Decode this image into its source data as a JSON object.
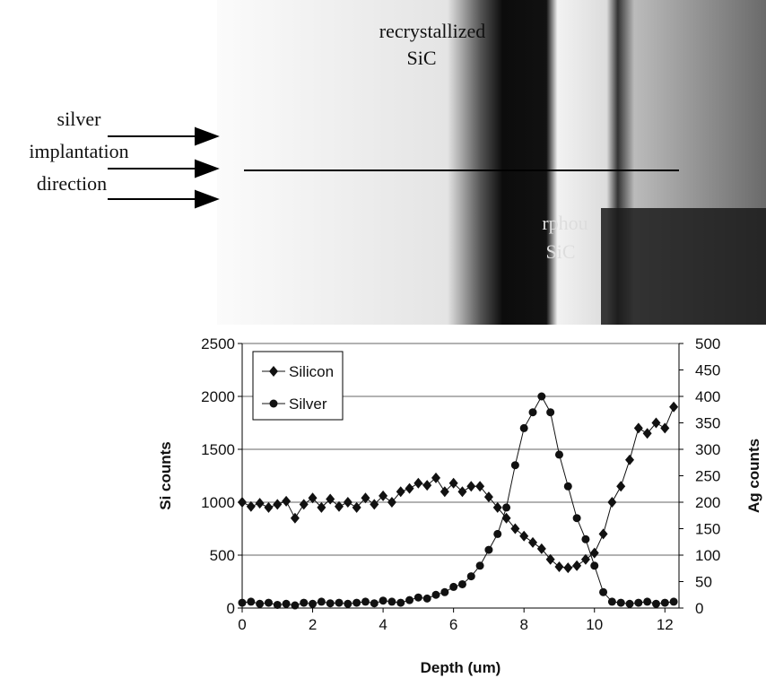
{
  "image_labels": {
    "top": [
      "recrystallized",
      "SiC"
    ],
    "left": [
      "silver",
      "implantation",
      "direction"
    ],
    "middle": [
      "rphou",
      "SiC"
    ]
  },
  "chart_data": {
    "type": "line",
    "x_label": "Depth (um)",
    "y_label": "Si counts",
    "y2_label": "Ag counts",
    "x": [
      0,
      0.25,
      0.5,
      0.75,
      1,
      1.25,
      1.5,
      1.75,
      2,
      2.25,
      2.5,
      2.75,
      3,
      3.25,
      3.5,
      3.75,
      4,
      4.25,
      4.5,
      4.75,
      5,
      5.25,
      5.5,
      5.75,
      6,
      6.25,
      6.5,
      6.75,
      7,
      7.25,
      7.5,
      7.75,
      8,
      8.25,
      8.5,
      8.75,
      9,
      9.25,
      9.5,
      9.75,
      10,
      10.25,
      10.5,
      10.75,
      11,
      11.25,
      11.5,
      11.75,
      12,
      12.25
    ],
    "series": [
      {
        "name": "Silicon",
        "color": "#111111",
        "marker": "diamond",
        "values": [
          1000,
          960,
          990,
          950,
          980,
          1010,
          850,
          980,
          1040,
          950,
          1030,
          960,
          1000,
          950,
          1040,
          980,
          1060,
          1000,
          1100,
          1130,
          1180,
          1160,
          1230,
          1100,
          1180,
          1100,
          1150,
          1150,
          1050,
          950,
          850,
          750,
          680,
          620,
          560,
          460,
          390,
          380,
          400,
          460,
          520,
          700,
          1000,
          1150,
          1400,
          1700,
          1650,
          1750,
          1700,
          1900
        ]
      },
      {
        "name": "Silver",
        "color": "#111111",
        "marker": "circle",
        "axis": "y2",
        "values": [
          10,
          12,
          8,
          10,
          6,
          8,
          5,
          10,
          8,
          12,
          9,
          10,
          8,
          10,
          12,
          9,
          14,
          12,
          10,
          15,
          20,
          18,
          25,
          30,
          40,
          45,
          60,
          80,
          110,
          140,
          190,
          270,
          340,
          370,
          400,
          370,
          290,
          230,
          170,
          130,
          80,
          30,
          12,
          10,
          8,
          10,
          12,
          8,
          10,
          12
        ]
      }
    ],
    "xlim": [
      0,
      12.4
    ],
    "xticks": [
      0,
      2,
      4,
      6,
      8,
      10,
      12
    ],
    "ylim": [
      0,
      2500
    ],
    "yticks": [
      0,
      500,
      1000,
      1500,
      2000,
      2500
    ],
    "y2lim": [
      0,
      500
    ],
    "y2ticks": [
      0,
      50,
      100,
      150,
      200,
      250,
      300,
      350,
      400,
      450,
      500
    ],
    "grid": true
  }
}
